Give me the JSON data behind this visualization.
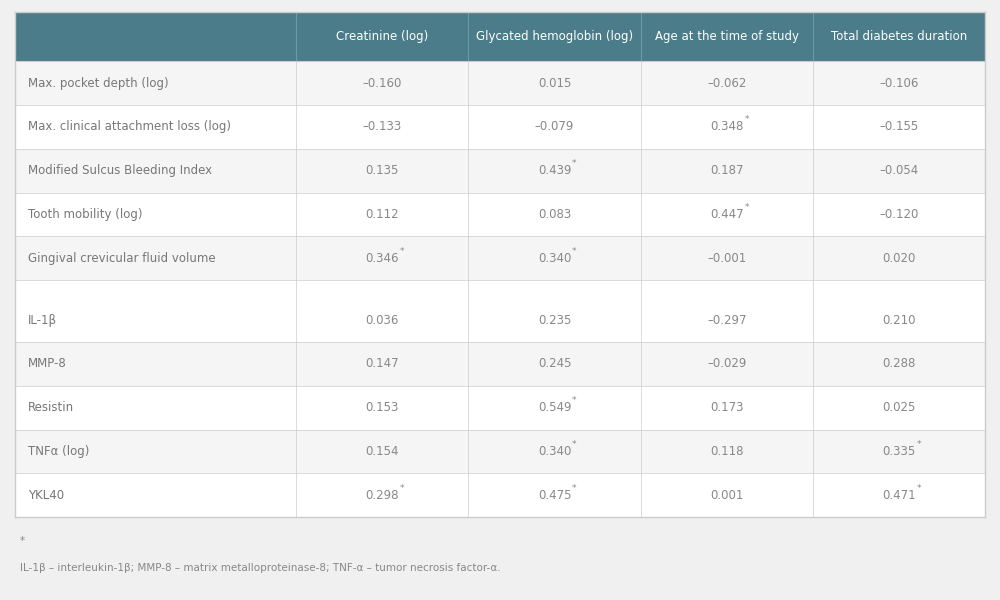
{
  "header_cols": [
    "Creatinine (log)",
    "Glycated hemoglobin (log)",
    "Age at the time of study",
    "Total diabetes duration"
  ],
  "rows": [
    {
      "label": "Max. pocket depth (log)",
      "values": [
        "–0.160",
        "0.015",
        "–0.062",
        "–0.106"
      ],
      "sig": [
        false,
        false,
        false,
        false
      ]
    },
    {
      "label": "Max. clinical attachment loss (log)",
      "values": [
        "–0.133",
        "–0.079",
        "0.348",
        "–0.155"
      ],
      "sig": [
        false,
        false,
        true,
        false
      ]
    },
    {
      "label": "Modified Sulcus Bleeding Index",
      "values": [
        "0.135",
        "0.439",
        "0.187",
        "–0.054"
      ],
      "sig": [
        false,
        true,
        false,
        false
      ]
    },
    {
      "label": "Tooth mobility (log)",
      "values": [
        "0.112",
        "0.083",
        "0.447",
        "–0.120"
      ],
      "sig": [
        false,
        false,
        true,
        false
      ]
    },
    {
      "label": "Gingival crevicular fluid volume",
      "values": [
        "0.346",
        "0.340",
        "–0.001",
        "0.020"
      ],
      "sig": [
        true,
        true,
        false,
        false
      ]
    },
    {
      "label": "IL-1β",
      "values": [
        "0.036",
        "0.235",
        "–0.297",
        "0.210"
      ],
      "sig": [
        false,
        false,
        false,
        false
      ]
    },
    {
      "label": "MMP-8",
      "values": [
        "0.147",
        "0.245",
        "–0.029",
        "0.288"
      ],
      "sig": [
        false,
        false,
        false,
        false
      ]
    },
    {
      "label": "Resistin",
      "values": [
        "0.153",
        "0.549",
        "0.173",
        "0.025"
      ],
      "sig": [
        false,
        true,
        false,
        false
      ]
    },
    {
      "label": "TNFα (log)",
      "values": [
        "0.154",
        "0.340",
        "0.118",
        "0.335"
      ],
      "sig": [
        false,
        true,
        false,
        true
      ]
    },
    {
      "label": "YKL40",
      "values": [
        "0.298",
        "0.475",
        "0.001",
        "0.471"
      ],
      "sig": [
        true,
        true,
        false,
        true
      ]
    }
  ],
  "group_break": 5,
  "footnote_star": "*",
  "footnote_text": "IL-1β – interleukin-1β; MMP-8 – matrix metalloproteinase-8; TNF-α – tumor necrosis factor-α.",
  "header_bg": "#4a7c8a",
  "header_fg": "#ffffff",
  "row_bg_alt": "#f5f5f5",
  "row_bg_norm": "#ffffff",
  "sep_color": "#cccccc",
  "text_color": "#888888",
  "label_color": "#777777",
  "outer_border": "#cccccc",
  "header_sep": "#6a9aaa",
  "fig_bg": "#f0f0f0",
  "value_fontsize": 8.5,
  "label_fontsize": 8.5,
  "header_fontsize": 8.5,
  "footnote_fontsize": 7.5
}
